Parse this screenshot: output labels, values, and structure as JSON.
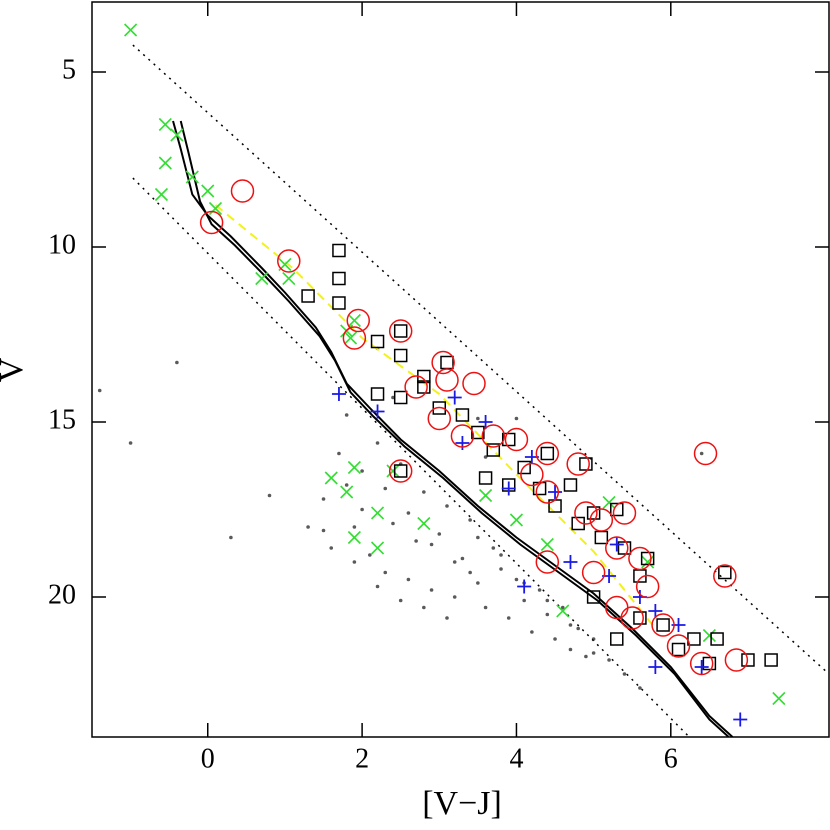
{
  "chart_data": {
    "type": "scatter",
    "xlabel": "[V−J]",
    "ylabel": "V",
    "xlim": [
      -1.5,
      8.05
    ],
    "ylim": [
      3,
      24
    ],
    "y_inverted": true,
    "xticks": [
      0,
      2,
      4,
      6
    ],
    "yticks": [
      5,
      10,
      15,
      20
    ],
    "series": [
      {
        "marker": "dot",
        "color": "#5a5a5a",
        "x": [
          1.3,
          1.5,
          1.6,
          1.8,
          1.9,
          2.0,
          2.1,
          2.2,
          2.3,
          2.4,
          2.5,
          2.6,
          2.7,
          2.8,
          2.9,
          3.0,
          3.1,
          3.2,
          3.3,
          3.4,
          3.5,
          3.6,
          3.7,
          3.8,
          3.9,
          4.0,
          4.1,
          4.2,
          4.3,
          4.4,
          4.5,
          4.6,
          4.7,
          4.8,
          4.9,
          5.0,
          5.2,
          5.4,
          5.6,
          1.7,
          2.0,
          2.3,
          2.6,
          2.9,
          3.2,
          3.5,
          3.8,
          4.1,
          4.4,
          4.7,
          5.0,
          1.5,
          1.9,
          2.2,
          2.5,
          2.8,
          3.1,
          3.4,
          -1.4,
          -1.0,
          -0.4,
          0.3,
          0.8,
          2.2,
          3.5,
          6.4,
          4.0,
          3.6,
          2.4,
          1.8
        ],
        "values": [
          18.0,
          17.2,
          18.6,
          16.8,
          19.0,
          17.5,
          18.8,
          15.6,
          19.3,
          17.9,
          16.2,
          19.5,
          18.4,
          17.0,
          19.8,
          18.2,
          17.4,
          20.0,
          18.9,
          17.8,
          19.6,
          20.3,
          18.6,
          19.2,
          20.6,
          19.5,
          20.1,
          21.0,
          19.8,
          20.5,
          21.2,
          20.3,
          21.5,
          20.9,
          21.7,
          21.2,
          21.8,
          22.2,
          22.6,
          15.9,
          16.4,
          16.9,
          17.6,
          18.5,
          19.0,
          18.3,
          18.8,
          19.6,
          20.1,
          20.8,
          21.6,
          18.1,
          18.0,
          19.7,
          20.1,
          20.3,
          20.6,
          19.3,
          14.1,
          15.6,
          13.3,
          18.3,
          17.1,
          12.9,
          14.9,
          15.9,
          14.9,
          16.0,
          14.3,
          14.8
        ]
      },
      {
        "marker": "dotted",
        "color": "#000000",
        "x": [
          -0.97,
          8.05
        ],
        "values": [
          4.23,
          22.2
        ]
      },
      {
        "marker": "dotted",
        "color": "#000000",
        "x": [
          -0.97,
          6.24
        ],
        "values": [
          8.03,
          24
        ]
      },
      {
        "marker": "line",
        "color": "#000000",
        "x": [
          -0.45,
          -0.35,
          -0.2,
          0,
          0.3,
          0.7,
          1.0,
          1.4,
          1.6,
          1.8,
          2.1,
          2.5,
          3,
          3.5,
          4,
          4.5,
          5,
          5.5,
          6,
          6.5,
          6.8
        ],
        "values": [
          6.4,
          7.2,
          8.5,
          9.1,
          9.7,
          10.6,
          11.3,
          12.3,
          13.0,
          13.9,
          14.6,
          15.5,
          16.4,
          17.4,
          18.3,
          19.1,
          19.9,
          20.9,
          22.0,
          23.4,
          24
        ]
      },
      {
        "marker": "line",
        "color": "#000000",
        "x": [
          -0.35,
          -0.25,
          -0.1,
          0.05,
          0.35,
          0.75,
          1.05,
          1.45,
          1.65,
          1.85,
          2.15,
          2.55,
          3.05,
          3.55,
          4.05,
          4.55,
          5.05,
          5.55,
          6.05,
          6.5,
          6.75
        ],
        "values": [
          6.4,
          7.3,
          8.7,
          9.35,
          9.95,
          10.85,
          11.55,
          12.55,
          13.25,
          14.15,
          14.85,
          15.7,
          16.6,
          17.6,
          18.5,
          19.3,
          20.1,
          21.1,
          22.2,
          23.5,
          24
        ]
      },
      {
        "marker": "dashed",
        "color": "#f2f21a",
        "x": [
          0.1,
          1.1,
          2,
          3,
          4,
          5,
          5.8
        ],
        "values": [
          8.8,
          10.6,
          12.6,
          14.2,
          16.5,
          18.7,
          20.9
        ]
      },
      {
        "marker": "x",
        "color": "#33dd33",
        "x": [
          -1.0,
          -0.55,
          -0.4,
          -0.55,
          -0.2,
          -0.6,
          0,
          0.1,
          0.7,
          1.0,
          1.05,
          1.8,
          1.9,
          1.85,
          2.4,
          1.6,
          1.9,
          1.8,
          2.2,
          1.9,
          2.2,
          2.8,
          3.6,
          4.0,
          4.4,
          4.6,
          5.2,
          5.7,
          6.5,
          7.4
        ],
        "values": [
          3.8,
          6.5,
          6.8,
          7.6,
          8.0,
          8.5,
          8.4,
          8.9,
          10.9,
          10.5,
          10.9,
          12.4,
          12.1,
          12.6,
          16.4,
          16.6,
          16.3,
          17.0,
          17.6,
          18.3,
          18.6,
          17.9,
          17.1,
          17.8,
          18.5,
          20.4,
          17.3,
          19.0,
          21.1,
          22.9
        ]
      },
      {
        "marker": "square",
        "color": "#000000",
        "x": [
          1.7,
          1.7,
          1.7,
          1.3,
          2.5,
          2.2,
          2.5,
          2.8,
          3.1,
          2.2,
          2.5,
          2.8,
          3.0,
          3.3,
          3.5,
          3.7,
          3.9,
          3.6,
          3.9,
          4.1,
          4.3,
          4.5,
          4.4,
          4.7,
          4.9,
          4.8,
          5.0,
          5.1,
          5.3,
          5.4,
          5.6,
          5.7,
          5.0,
          5.3,
          5.6,
          5.9,
          6.1,
          6.3,
          6.5,
          6.6,
          6.7,
          7.0,
          7.3,
          2.5
        ],
        "values": [
          10.1,
          10.9,
          11.6,
          11.4,
          12.4,
          12.7,
          13.1,
          13.7,
          13.3,
          14.2,
          14.3,
          14.0,
          14.6,
          14.8,
          15.3,
          15.8,
          15.5,
          16.6,
          16.8,
          16.3,
          16.9,
          17.4,
          15.9,
          16.8,
          16.2,
          17.9,
          17.6,
          18.3,
          17.5,
          18.6,
          19.4,
          18.9,
          20.0,
          21.2,
          20.6,
          20.8,
          21.5,
          21.2,
          21.9,
          21.2,
          19.3,
          21.8,
          21.8,
          16.4
        ]
      },
      {
        "marker": "plus",
        "color": "#1a1ae6",
        "x": [
          1.7,
          2.2,
          3.2,
          3.6,
          4.2,
          4.5,
          4.1,
          4.7,
          5.6,
          5.8,
          5.8,
          6.9,
          5.3,
          6.1,
          3.9,
          3.3,
          5.2,
          6.4
        ],
        "values": [
          14.2,
          14.7,
          14.3,
          15.0,
          16.0,
          17.0,
          19.7,
          19.0,
          20.0,
          20.4,
          22.0,
          23.5,
          18.5,
          20.8,
          16.9,
          15.6,
          19.4,
          22.0
        ]
      },
      {
        "marker": "circle",
        "color": "#ee1111",
        "x": [
          0.45,
          0.05,
          1.05,
          1.95,
          1.9,
          2.5,
          2.5,
          3.05,
          3.1,
          2.7,
          3.0,
          3.45,
          3.3,
          3.7,
          4.0,
          4.4,
          4.2,
          4.4,
          4.8,
          4.4,
          4.9,
          5.1,
          5.3,
          5.0,
          5.4,
          5.6,
          5.7,
          5.3,
          5.5,
          6.4,
          6.85,
          6.45,
          6.7,
          5.9,
          6.1
        ],
        "values": [
          8.4,
          9.3,
          10.4,
          12.1,
          12.6,
          12.4,
          16.4,
          13.3,
          13.8,
          14.0,
          14.9,
          13.9,
          15.4,
          15.4,
          15.5,
          15.9,
          16.5,
          17.0,
          16.2,
          19.0,
          17.6,
          17.8,
          18.6,
          19.3,
          17.6,
          18.9,
          19.7,
          20.3,
          20.6,
          21.9,
          21.8,
          15.9,
          19.4,
          20.8,
          21.4
        ]
      }
    ]
  }
}
